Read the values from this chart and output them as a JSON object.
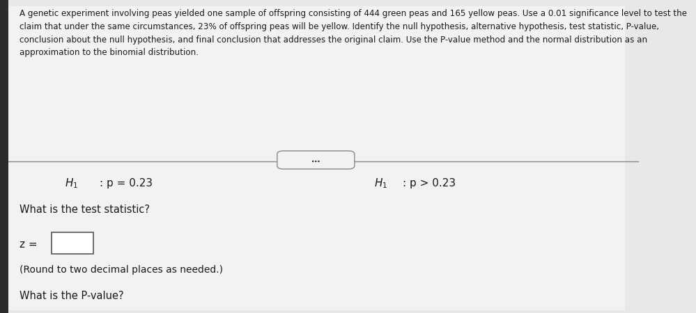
{
  "background_color": "#e8e8e8",
  "panel_color": "#f0f0f0",
  "text_color": "#1a1a1a",
  "paragraph": "A genetic experiment involving peas yielded one sample of offspring consisting of 444 green peas and 165 yellow peas. Use a 0.01 significance level to test the claim that under the same circumstances, 23% of offspring peas will be yellow. Identify the null hypothesis, alternative hypothesis, test statistic, P-value, conclusion about the null hypothesis, and final conclusion that addresses the original claim. Use the P-value method and the normal distribution as an approximation to the binomial distribution.",
  "dots_label": "…",
  "h1_left_label": "H",
  "h1_left_sub": "1",
  "h1_left_text": ": p = 0.23",
  "h1_right_label": "H",
  "h1_right_sub": "1",
  "h1_right_text": ": p > 0.23",
  "question": "What is the test statistic?",
  "z_label": "z =",
  "box_note": "(Round to two decimal places as needed.)",
  "bottom_text": "What is the P-value?"
}
